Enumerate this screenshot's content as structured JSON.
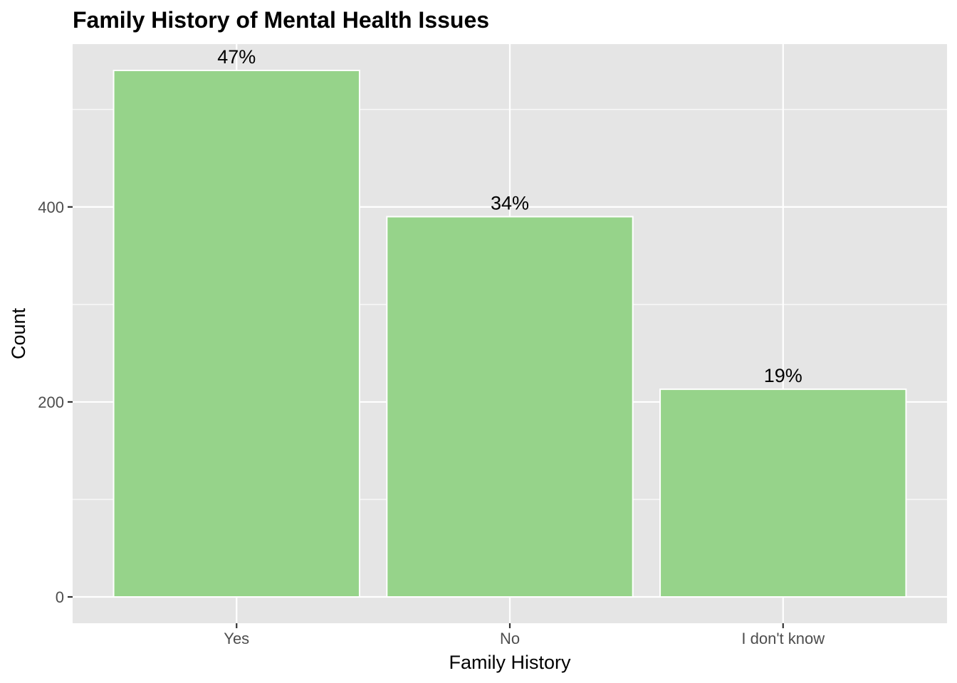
{
  "chart_data": {
    "type": "bar",
    "title": "Family History of Mental Health Issues",
    "xlabel": "Family History",
    "ylabel": "Count",
    "categories": [
      "Yes",
      "No",
      "I don't know"
    ],
    "values": [
      540,
      390,
      213
    ],
    "labels": [
      "47%",
      "34%",
      "19%"
    ],
    "ylim": [
      -27,
      567
    ],
    "yticks": [
      0,
      200,
      400
    ],
    "ytick_labels": [
      "0",
      "200",
      "400"
    ],
    "y_minor_ticks": [
      100,
      300,
      500
    ],
    "grid": true,
    "legend": "none",
    "colors": {
      "bar_fill": "#96d38a",
      "bar_outline": "#ffffff",
      "panel_background": "#e5e5e5",
      "grid": "#ffffff",
      "tick": "#333333"
    }
  }
}
